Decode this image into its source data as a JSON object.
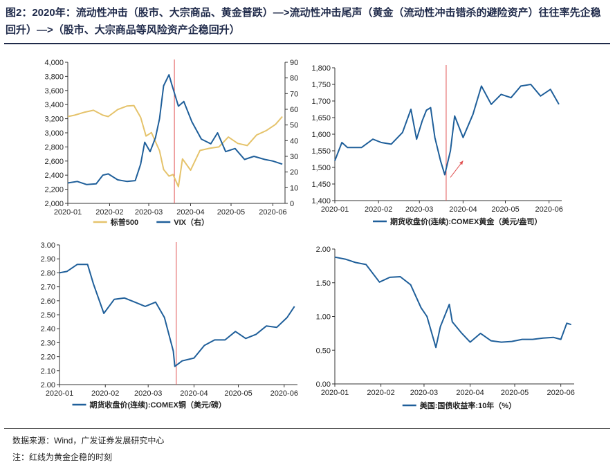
{
  "header": {
    "title": "图2：2020年：流动性冲击（股市、大宗商品、黄金普跌）—>流动性冲击尾声（黄金（流动性冲击错杀的避险资产）往往率先企稳回升）—>（股市、大宗商品等风险资产企稳回升）"
  },
  "footer": {
    "source": "数据来源：Wind，广发证券发展研究中心",
    "note": "注：红线为黄金企稳的时刻"
  },
  "colors": {
    "gold": "#e5c36b",
    "blue": "#1f5f9a",
    "red": "#e05050",
    "axis": "#333333"
  },
  "chart_data": [
    {
      "type": "line",
      "x_ticks": [
        "2020-01",
        "2020-02",
        "2020-03",
        "2020-04",
        "2020-05",
        "2020-06"
      ],
      "x_range": [
        "2020-01-01",
        "2020-06-10"
      ],
      "vline_date": "2020-03-20",
      "y_left": {
        "range": [
          2000,
          4000
        ],
        "ticks": [
          "2,000",
          "2,200",
          "2,400",
          "2,600",
          "2,800",
          "3,000",
          "3,200",
          "3,400",
          "3,600",
          "3,800",
          "4,000"
        ]
      },
      "y_right": {
        "range": [
          0,
          90
        ],
        "ticks": [
          "0",
          "10",
          "20",
          "30",
          "40",
          "50",
          "60",
          "70",
          "80",
          "90"
        ]
      },
      "series": [
        {
          "name": "标普500",
          "axis": "left",
          "color": "gold",
          "x": [
            "2020-01-01",
            "2020-01-06",
            "2020-01-13",
            "2020-01-20",
            "2020-01-27",
            "2020-01-31",
            "2020-02-07",
            "2020-02-14",
            "2020-02-19",
            "2020-02-24",
            "2020-02-28",
            "2020-03-03",
            "2020-03-09",
            "2020-03-12",
            "2020-03-16",
            "2020-03-19",
            "2020-03-23",
            "2020-03-26",
            "2020-04-01",
            "2020-04-08",
            "2020-04-15",
            "2020-04-22",
            "2020-04-29",
            "2020-05-06",
            "2020-05-13",
            "2020-05-20",
            "2020-05-27",
            "2020-06-03",
            "2020-06-08"
          ],
          "values": [
            3230,
            3250,
            3290,
            3320,
            3250,
            3230,
            3330,
            3380,
            3386,
            3220,
            2954,
            3003,
            2746,
            2480,
            2386,
            2409,
            2237,
            2630,
            2470,
            2750,
            2780,
            2800,
            2940,
            2850,
            2820,
            2970,
            3030,
            3120,
            3230
          ]
        },
        {
          "name": "VIX（右）",
          "axis": "right",
          "color": "blue",
          "x": [
            "2020-01-01",
            "2020-01-08",
            "2020-01-15",
            "2020-01-22",
            "2020-01-27",
            "2020-01-31",
            "2020-02-07",
            "2020-02-14",
            "2020-02-20",
            "2020-02-24",
            "2020-02-27",
            "2020-03-02",
            "2020-03-06",
            "2020-03-09",
            "2020-03-12",
            "2020-03-16",
            "2020-03-18",
            "2020-03-23",
            "2020-03-27",
            "2020-04-02",
            "2020-04-09",
            "2020-04-16",
            "2020-04-21",
            "2020-04-27",
            "2020-05-04",
            "2020-05-11",
            "2020-05-18",
            "2020-05-26",
            "2020-06-01",
            "2020-06-08"
          ],
          "values": [
            13,
            14,
            12,
            12.5,
            18,
            18.8,
            15,
            14,
            14.5,
            25,
            39,
            33,
            42,
            54,
            75,
            82,
            76,
            62,
            65,
            52,
            41,
            38,
            45,
            33,
            35,
            28,
            30,
            28,
            27,
            25
          ]
        }
      ],
      "legend": [
        "标普500",
        "VIX（右）"
      ]
    },
    {
      "type": "line",
      "x_ticks": [
        "2020-01",
        "2020-02",
        "2020-03",
        "2020-04",
        "2020-05",
        "2020-06"
      ],
      "x_range": [
        "2020-01-01",
        "2020-06-10"
      ],
      "vline_date": "2020-03-20",
      "arrow": {
        "from": [
          "2020-03-23",
          1470
        ],
        "to": [
          "2020-04-01",
          1520
        ]
      },
      "y_left": {
        "range": [
          1400,
          1800
        ],
        "ticks": [
          "1,400",
          "1,450",
          "1,500",
          "1,550",
          "1,600",
          "1,650",
          "1,700",
          "1,750",
          "1,800"
        ]
      },
      "series": [
        {
          "name": "期货收盘价(连续):COMEX黄金（美元/盎司）",
          "axis": "left",
          "color": "blue",
          "x": [
            "2020-01-01",
            "2020-01-06",
            "2020-01-10",
            "2020-01-20",
            "2020-01-28",
            "2020-02-03",
            "2020-02-10",
            "2020-02-18",
            "2020-02-24",
            "2020-02-28",
            "2020-03-03",
            "2020-03-06",
            "2020-03-09",
            "2020-03-12",
            "2020-03-16",
            "2020-03-19",
            "2020-03-23",
            "2020-03-26",
            "2020-04-01",
            "2020-04-08",
            "2020-04-14",
            "2020-04-21",
            "2020-04-28",
            "2020-05-05",
            "2020-05-12",
            "2020-05-19",
            "2020-05-26",
            "2020-06-02",
            "2020-06-08"
          ],
          "values": [
            1520,
            1575,
            1560,
            1560,
            1585,
            1575,
            1570,
            1605,
            1675,
            1585,
            1640,
            1672,
            1680,
            1590,
            1520,
            1478,
            1550,
            1655,
            1590,
            1660,
            1745,
            1690,
            1720,
            1710,
            1745,
            1750,
            1715,
            1735,
            1690
          ]
        }
      ],
      "legend": [
        "期货收盘价(连续):COMEX黄金（美元/盎司）"
      ]
    },
    {
      "type": "line",
      "x_ticks": [
        "2020-01",
        "2020-02",
        "2020-03",
        "2020-04",
        "2020-05",
        "2020-06"
      ],
      "x_range": [
        "2020-01-01",
        "2020-06-10"
      ],
      "vline_date": "2020-03-20",
      "y_left": {
        "range": [
          2.0,
          3.0
        ],
        "ticks": [
          "2.00",
          "2.10",
          "2.20",
          "2.30",
          "2.40",
          "2.50",
          "2.60",
          "2.70",
          "2.80",
          "2.90",
          "3.00"
        ]
      },
      "series": [
        {
          "name": "期货收盘价(连续):COMEX铜（美元/磅）",
          "axis": "left",
          "color": "blue",
          "x": [
            "2020-01-01",
            "2020-01-06",
            "2020-01-13",
            "2020-01-20",
            "2020-01-24",
            "2020-01-31",
            "2020-02-07",
            "2020-02-14",
            "2020-02-21",
            "2020-02-28",
            "2020-03-06",
            "2020-03-12",
            "2020-03-18",
            "2020-03-19",
            "2020-03-24",
            "2020-04-01",
            "2020-04-08",
            "2020-04-15",
            "2020-04-22",
            "2020-04-29",
            "2020-05-06",
            "2020-05-13",
            "2020-05-20",
            "2020-05-27",
            "2020-06-03",
            "2020-06-08"
          ],
          "values": [
            2.8,
            2.81,
            2.86,
            2.86,
            2.72,
            2.51,
            2.61,
            2.62,
            2.59,
            2.56,
            2.59,
            2.48,
            2.24,
            2.13,
            2.17,
            2.19,
            2.28,
            2.32,
            2.32,
            2.38,
            2.33,
            2.36,
            2.42,
            2.41,
            2.48,
            2.56
          ]
        }
      ],
      "legend": [
        "期货收盘价(连续):COMEX铜（美元/磅）"
      ]
    },
    {
      "type": "line",
      "x_ticks": [
        "2020-01",
        "2020-02",
        "2020-03",
        "2020-04",
        "2020-05",
        "2020-06"
      ],
      "x_range": [
        "2020-01-01",
        "2020-06-10"
      ],
      "y_left": {
        "range": [
          0,
          2
        ],
        "ticks": [
          "0.00",
          "0.50",
          "1.00",
          "1.50",
          "2.00"
        ]
      },
      "series": [
        {
          "name": "美国:国债收益率:10年（%）",
          "axis": "left",
          "color": "blue",
          "x": [
            "2020-01-01",
            "2020-01-08",
            "2020-01-15",
            "2020-01-22",
            "2020-01-31",
            "2020-02-07",
            "2020-02-14",
            "2020-02-21",
            "2020-02-28",
            "2020-03-03",
            "2020-03-09",
            "2020-03-12",
            "2020-03-18",
            "2020-03-20",
            "2020-03-26",
            "2020-04-01",
            "2020-04-08",
            "2020-04-15",
            "2020-04-22",
            "2020-04-29",
            "2020-05-06",
            "2020-05-13",
            "2020-05-20",
            "2020-05-27",
            "2020-06-01",
            "2020-06-05",
            "2020-06-08"
          ],
          "values": [
            1.88,
            1.85,
            1.8,
            1.77,
            1.51,
            1.58,
            1.59,
            1.47,
            1.13,
            1.0,
            0.54,
            0.85,
            1.18,
            0.92,
            0.76,
            0.62,
            0.75,
            0.64,
            0.62,
            0.63,
            0.66,
            0.66,
            0.68,
            0.69,
            0.66,
            0.9,
            0.88
          ]
        }
      ],
      "legend": [
        "美国:国债收益率:10年（%）"
      ]
    }
  ]
}
